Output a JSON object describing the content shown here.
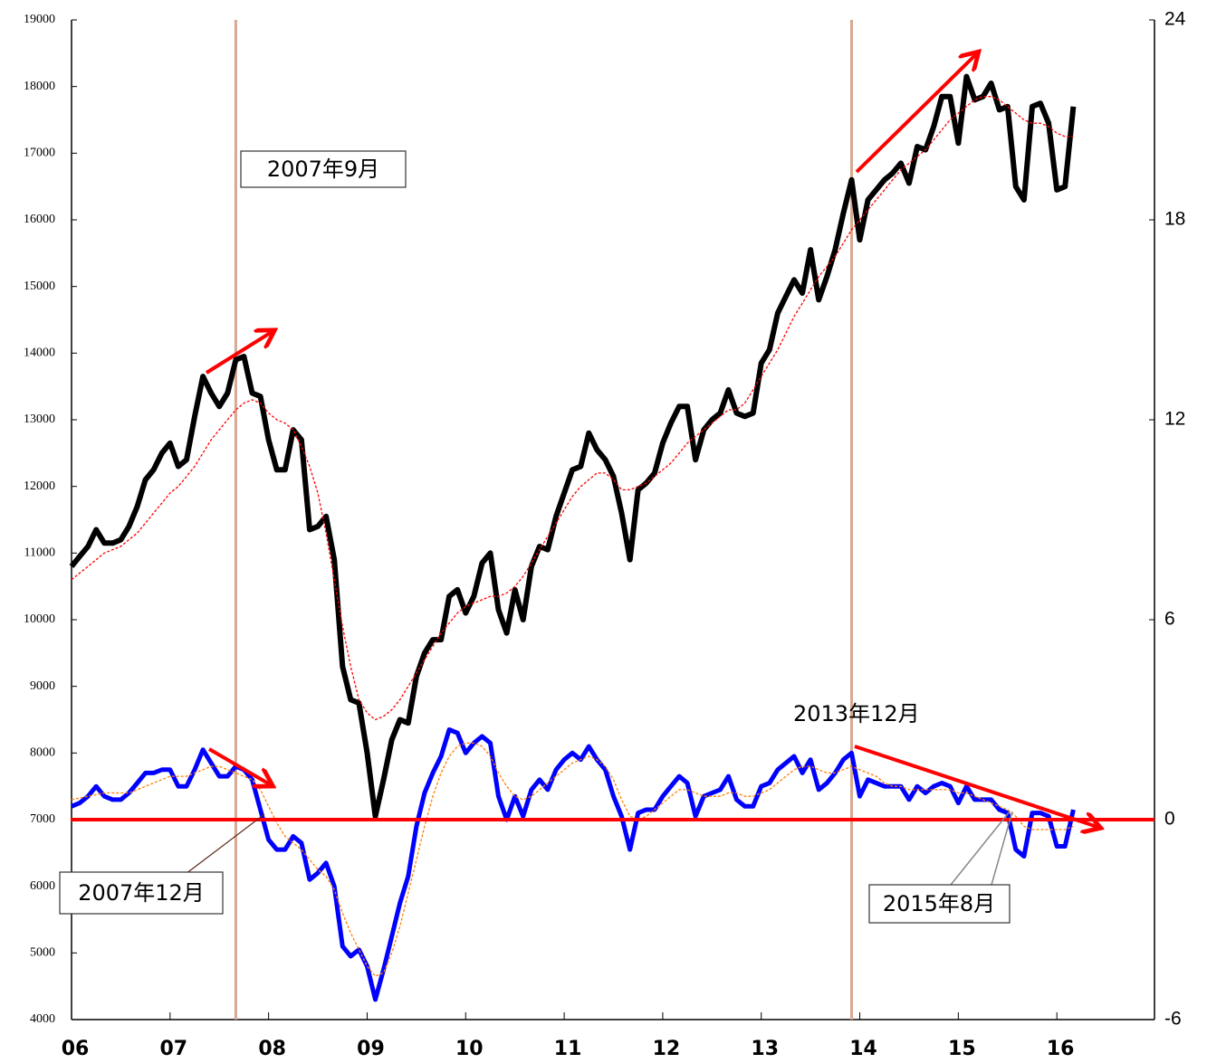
{
  "chart_data": {
    "type": "line",
    "x": [
      2006,
      2006.083,
      2006.167,
      2006.25,
      2006.333,
      2006.417,
      2006.5,
      2006.583,
      2006.667,
      2006.75,
      2006.833,
      2006.917,
      2007,
      2007.083,
      2007.167,
      2007.25,
      2007.333,
      2007.417,
      2007.5,
      2007.583,
      2007.667,
      2007.75,
      2007.833,
      2007.917,
      2008,
      2008.083,
      2008.167,
      2008.25,
      2008.333,
      2008.417,
      2008.5,
      2008.583,
      2008.667,
      2008.75,
      2008.833,
      2008.917,
      2009,
      2009.083,
      2009.167,
      2009.25,
      2009.333,
      2009.417,
      2009.5,
      2009.583,
      2009.667,
      2009.75,
      2009.833,
      2009.917,
      2010,
      2010.083,
      2010.167,
      2010.25,
      2010.333,
      2010.417,
      2010.5,
      2010.583,
      2010.667,
      2010.75,
      2010.833,
      2010.917,
      2011,
      2011.083,
      2011.167,
      2011.25,
      2011.333,
      2011.417,
      2011.5,
      2011.583,
      2011.667,
      2011.75,
      2011.833,
      2011.917,
      2012,
      2012.083,
      2012.167,
      2012.25,
      2012.333,
      2012.417,
      2012.5,
      2012.583,
      2012.667,
      2012.75,
      2012.833,
      2012.917,
      2013,
      2013.083,
      2013.167,
      2013.25,
      2013.333,
      2013.417,
      2013.5,
      2013.583,
      2013.667,
      2013.75,
      2013.833,
      2013.917,
      2014,
      2014.083,
      2014.167,
      2014.25,
      2014.333,
      2014.417,
      2014.5,
      2014.583,
      2014.667,
      2014.75,
      2014.833,
      2014.917,
      2015,
      2015.083,
      2015.167,
      2015.25,
      2015.333,
      2015.417,
      2015.5,
      2015.583,
      2015.667,
      2015.75,
      2015.833,
      2015.917,
      2016,
      2016.083,
      2016.167
    ],
    "series": [
      {
        "color": "#000000",
        "width": 6,
        "values": [
          10800,
          10950,
          11100,
          11350,
          11150,
          11150,
          11200,
          11400,
          11700,
          12100,
          12250,
          12500,
          12650,
          12300,
          12400,
          13050,
          13650,
          13400,
          13200,
          13400,
          13900,
          13950,
          13400,
          13350,
          12700,
          12250,
          12250,
          12850,
          12700,
          11350,
          11400,
          11550,
          10900,
          9300,
          8800,
          8750,
          8000,
          7050,
          7600,
          8200,
          8500,
          8450,
          9150,
          9500,
          9700,
          9700,
          10350,
          10450,
          10100,
          10350,
          10850,
          11000,
          10150,
          9800,
          10450,
          10000,
          10800,
          11100,
          11050,
          11550,
          11900,
          12250,
          12300,
          12800,
          12550,
          12400,
          12150,
          11600,
          10900,
          11950,
          12050,
          12200,
          12650,
          12950,
          13200,
          13200,
          12400,
          12850,
          13000,
          13100,
          13450,
          13100,
          13050,
          13100,
          13850,
          14050,
          14600,
          14850,
          15100,
          14900,
          15550,
          14800,
          15150,
          15550,
          16100,
          16600,
          15700,
          16300,
          16450,
          16600,
          16700,
          16850,
          16550,
          17100,
          17050,
          17400,
          17850,
          17850,
          17150,
          18150,
          17800,
          17850,
          18050,
          17650,
          17700,
          16500,
          16300,
          17700,
          17750,
          17450,
          16450,
          16500,
          17700
        ]
      },
      {
        "color": "#ff0000",
        "width": 1.3,
        "dash": true,
        "values": [
          10600,
          10700,
          10800,
          10900,
          11000,
          11050,
          11100,
          11200,
          11300,
          11450,
          11600,
          11750,
          11900,
          12000,
          12150,
          12300,
          12500,
          12700,
          12850,
          13000,
          13150,
          13250,
          13300,
          13250,
          13100,
          13000,
          12950,
          12850,
          12600,
          12300,
          11900,
          11300,
          10600,
          9900,
          9300,
          8800,
          8600,
          8500,
          8550,
          8650,
          8800,
          9000,
          9200,
          9400,
          9600,
          9800,
          9950,
          10100,
          10200,
          10250,
          10300,
          10350,
          10350,
          10400,
          10500,
          10650,
          10850,
          11050,
          11250,
          11450,
          11650,
          11850,
          12000,
          12100,
          12200,
          12200,
          12100,
          11950,
          11950,
          12000,
          12050,
          12150,
          12250,
          12350,
          12500,
          12650,
          12750,
          12850,
          12950,
          13050,
          13150,
          13150,
          13250,
          13450,
          13650,
          13850,
          14050,
          14300,
          14550,
          14750,
          14950,
          15150,
          15300,
          15450,
          15650,
          15850,
          16000,
          16150,
          16300,
          16450,
          16600,
          16750,
          16850,
          16950,
          17050,
          17200,
          17350,
          17500,
          17600,
          17700,
          17800,
          17850,
          17850,
          17800,
          17700,
          17600,
          17500,
          17450,
          17450,
          17400,
          17300,
          17250,
          17250
        ]
      },
      {
        "color": "#0000ff",
        "width": 5,
        "axis": "y2",
        "values": [
          0.4,
          0.5,
          0.7,
          1.0,
          0.7,
          0.6,
          0.6,
          0.8,
          1.1,
          1.4,
          1.4,
          1.5,
          1.5,
          1.0,
          1.0,
          1.5,
          2.1,
          1.7,
          1.3,
          1.3,
          1.6,
          1.5,
          1.2,
          0.3,
          -0.6,
          -0.9,
          -0.9,
          -0.5,
          -0.7,
          -1.8,
          -1.6,
          -1.3,
          -2.0,
          -3.8,
          -4.1,
          -3.9,
          -4.4,
          -5.4,
          -4.5,
          -3.5,
          -2.5,
          -1.7,
          -0.2,
          0.8,
          1.4,
          1.9,
          2.7,
          2.6,
          2.0,
          2.3,
          2.5,
          2.3,
          0.7,
          0.0,
          0.7,
          0.1,
          0.9,
          1.2,
          0.9,
          1.5,
          1.8,
          2.0,
          1.8,
          2.2,
          1.8,
          1.5,
          0.7,
          0.1,
          -0.9,
          0.2,
          0.3,
          0.3,
          0.7,
          1.0,
          1.3,
          1.1,
          0.1,
          0.7,
          0.8,
          0.9,
          1.3,
          0.6,
          0.4,
          0.4,
          1.0,
          1.1,
          1.5,
          1.7,
          1.9,
          1.4,
          1.8,
          0.9,
          1.1,
          1.4,
          1.8,
          2.0,
          0.7,
          1.2,
          1.1,
          1.0,
          1.0,
          1.0,
          0.6,
          1.0,
          0.8,
          1.0,
          1.1,
          1.0,
          0.5,
          1.0,
          0.6,
          0.6,
          0.6,
          0.3,
          0.2,
          -0.9,
          -1.1,
          0.2,
          0.2,
          0.1,
          -0.8,
          -0.8,
          0.3
        ]
      },
      {
        "color": "#ff8000",
        "width": 1.3,
        "dash": true,
        "axis": "y2",
        "values": [
          0.6,
          0.65,
          0.7,
          0.75,
          0.8,
          0.8,
          0.8,
          0.8,
          0.9,
          1.0,
          1.1,
          1.2,
          1.3,
          1.3,
          1.3,
          1.4,
          1.5,
          1.6,
          1.6,
          1.5,
          1.4,
          1.3,
          1.2,
          0.9,
          0.4,
          -0.1,
          -0.5,
          -0.7,
          -0.9,
          -1.2,
          -1.5,
          -1.7,
          -2.1,
          -2.8,
          -3.4,
          -3.9,
          -4.4,
          -4.7,
          -4.6,
          -4.0,
          -3.2,
          -2.2,
          -1.2,
          -0.2,
          0.7,
          1.4,
          1.9,
          2.2,
          2.3,
          2.3,
          2.2,
          1.9,
          1.4,
          1.0,
          0.7,
          0.6,
          0.7,
          0.9,
          1.1,
          1.3,
          1.5,
          1.7,
          1.8,
          1.9,
          1.8,
          1.6,
          1.2,
          0.6,
          0.1,
          0.0,
          0.1,
          0.3,
          0.5,
          0.7,
          0.9,
          0.9,
          0.8,
          0.7,
          0.7,
          0.7,
          0.8,
          0.8,
          0.7,
          0.7,
          0.8,
          0.9,
          1.1,
          1.3,
          1.5,
          1.6,
          1.6,
          1.5,
          1.4,
          1.4,
          1.5,
          1.6,
          1.5,
          1.4,
          1.3,
          1.1,
          1.0,
          1.0,
          0.9,
          0.9,
          0.9,
          0.9,
          0.9,
          0.9,
          0.8,
          0.8,
          0.7,
          0.6,
          0.5,
          0.4,
          0.3,
          0.1,
          -0.2,
          -0.3,
          -0.3,
          -0.3,
          -0.3,
          -0.3,
          -0.2
        ]
      }
    ],
    "xlim": [
      2006,
      2017
    ],
    "xticks": [
      {
        "value": 2006,
        "label": "06"
      },
      {
        "value": 2007,
        "label": "07"
      },
      {
        "value": 2008,
        "label": "08"
      },
      {
        "value": 2009,
        "label": "09"
      },
      {
        "value": 2010,
        "label": "10"
      },
      {
        "value": 2011,
        "label": "11"
      },
      {
        "value": 2012,
        "label": "12"
      },
      {
        "value": 2013,
        "label": "13"
      },
      {
        "value": 2014,
        "label": "14"
      },
      {
        "value": 2015,
        "label": "15"
      },
      {
        "value": 2016,
        "label": "16"
      }
    ],
    "ylim": [
      4000,
      19000
    ],
    "yticks": [
      4000,
      5000,
      6000,
      7000,
      8000,
      9000,
      10000,
      11000,
      12000,
      13000,
      14000,
      15000,
      16000,
      17000,
      18000,
      19000
    ],
    "y2lim": [
      -6,
      24
    ],
    "y2ticks": [
      -6,
      0,
      6,
      12,
      18,
      24
    ],
    "vlines": [
      2007.667,
      2013.917
    ],
    "vline_color": "#d8a890",
    "annotations": [
      "2007年9月",
      "2013年12月",
      "2007年12月",
      "2015年8月"
    ]
  }
}
